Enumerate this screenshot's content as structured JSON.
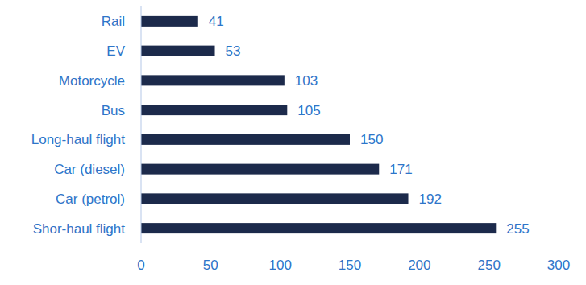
{
  "chart_data": {
    "type": "bar",
    "orientation": "horizontal",
    "categories": [
      "Rail",
      "EV",
      "Motorcycle",
      "Bus",
      "Long-haul flight",
      "Car (diesel)",
      "Car (petrol)",
      "Shor-haul flight"
    ],
    "values": [
      41,
      53,
      103,
      105,
      150,
      171,
      192,
      255
    ],
    "color": "#1c2a4b",
    "xlim": [
      0,
      300
    ],
    "xticks": [
      0,
      50,
      100,
      150,
      200,
      250,
      300
    ],
    "grid": false,
    "data_labels": true
  }
}
